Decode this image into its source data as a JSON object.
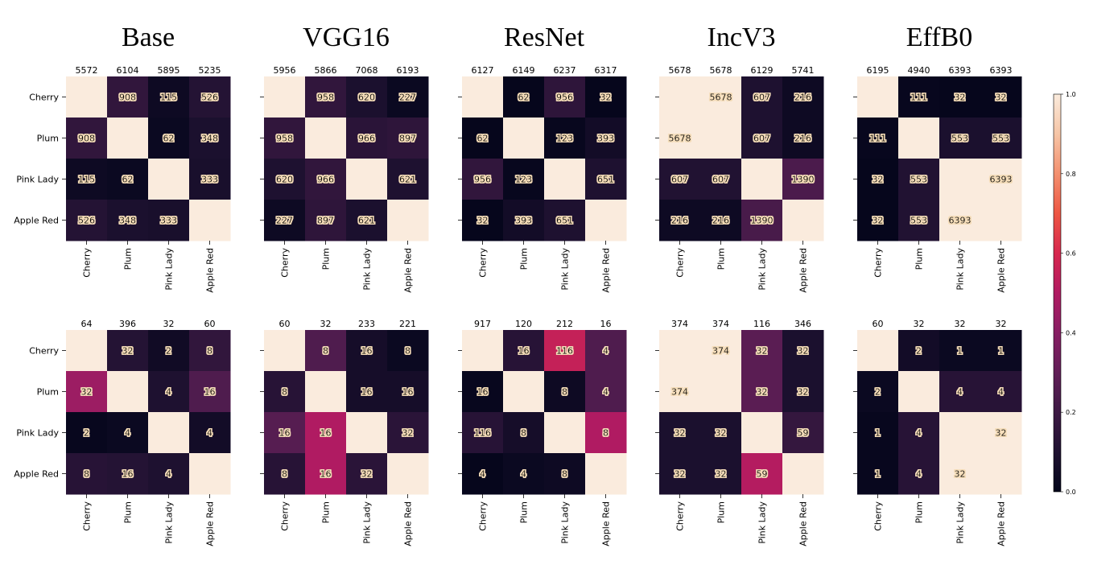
{
  "chart_data": {
    "type": "heatmap",
    "categories": [
      "Cherry",
      "Plum",
      "Pink Lady",
      "Apple Red"
    ],
    "columns": [
      {
        "title": "Base",
        "rows": [
          {
            "top_counts": [
              "5572",
              "6104",
              "5895",
              "5235"
            ],
            "cells": [
              [
                "",
                "908",
                "115",
                "526"
              ],
              [
                "908",
                "",
                "62",
                "348"
              ],
              [
                "115",
                "62",
                "",
                "333"
              ],
              [
                "526",
                "348",
                "333",
                ""
              ]
            ],
            "intensity": [
              [
                1.0,
                0.16,
                0.04,
                0.12
              ],
              [
                0.16,
                1.0,
                0.03,
                0.09
              ],
              [
                0.04,
                0.03,
                1.0,
                0.08
              ],
              [
                0.12,
                0.09,
                0.08,
                1.0
              ]
            ]
          },
          {
            "top_counts": [
              "64",
              "396",
              "32",
              "60"
            ],
            "cells": [
              [
                "",
                "32",
                "2",
                "8"
              ],
              [
                "32",
                "",
                "4",
                "16"
              ],
              [
                "2",
                "4",
                "",
                "4"
              ],
              [
                "8",
                "16",
                "4",
                ""
              ]
            ],
            "intensity": [
              [
                1.0,
                0.12,
                0.05,
                0.16
              ],
              [
                0.45,
                1.0,
                0.1,
                0.25
              ],
              [
                0.02,
                0.03,
                1.0,
                0.06
              ],
              [
                0.13,
                0.12,
                0.1,
                1.0
              ]
            ]
          }
        ]
      },
      {
        "title": "VGG16",
        "rows": [
          {
            "top_counts": [
              "5956",
              "5866",
              "7068",
              "6193"
            ],
            "cells": [
              [
                "",
                "958",
                "620",
                "227"
              ],
              [
                "958",
                "",
                "966",
                "897"
              ],
              [
                "620",
                "966",
                "",
                "621"
              ],
              [
                "227",
                "897",
                "621",
                ""
              ]
            ],
            "intensity": [
              [
                1.0,
                0.16,
                0.09,
                0.03
              ],
              [
                0.16,
                1.0,
                0.14,
                0.15
              ],
              [
                0.1,
                0.16,
                1.0,
                0.1
              ],
              [
                0.04,
                0.15,
                0.09,
                1.0
              ]
            ]
          },
          {
            "top_counts": [
              "60",
              "32",
              "233",
              "221"
            ],
            "cells": [
              [
                "",
                "8",
                "16",
                "8"
              ],
              [
                "8",
                "",
                "16",
                "16"
              ],
              [
                "16",
                "16",
                "",
                "32"
              ],
              [
                "8",
                "16",
                "32",
                ""
              ]
            ],
            "intensity": [
              [
                1.0,
                0.25,
                0.07,
                0.03
              ],
              [
                0.13,
                1.0,
                0.07,
                0.07
              ],
              [
                0.27,
                0.5,
                1.0,
                0.14
              ],
              [
                0.13,
                0.5,
                0.14,
                1.0
              ]
            ]
          }
        ]
      },
      {
        "title": "ResNet",
        "rows": [
          {
            "top_counts": [
              "6127",
              "6149",
              "6237",
              "6317"
            ],
            "cells": [
              [
                "",
                "62",
                "956",
                "32"
              ],
              [
                "62",
                "",
                "123",
                "393"
              ],
              [
                "956",
                "123",
                "",
                "651"
              ],
              [
                "32",
                "393",
                "651",
                ""
              ]
            ],
            "intensity": [
              [
                1.0,
                0.01,
                0.15,
                0.01
              ],
              [
                0.01,
                1.0,
                0.02,
                0.06
              ],
              [
                0.16,
                0.02,
                1.0,
                0.1
              ],
              [
                0.01,
                0.06,
                0.1,
                1.0
              ]
            ]
          },
          {
            "top_counts": [
              "917",
              "120",
              "212",
              "16"
            ],
            "cells": [
              [
                "",
                "16",
                "116",
                "4"
              ],
              [
                "16",
                "",
                "8",
                "4"
              ],
              [
                "116",
                "8",
                "",
                "8"
              ],
              [
                "4",
                "4",
                "8",
                ""
              ]
            ],
            "intensity": [
              [
                1.0,
                0.13,
                0.55,
                0.25
              ],
              [
                0.02,
                1.0,
                0.04,
                0.25
              ],
              [
                0.13,
                0.07,
                1.0,
                0.5
              ],
              [
                0.01,
                0.03,
                0.04,
                1.0
              ]
            ]
          }
        ]
      },
      {
        "title": "IncV3",
        "rows": [
          {
            "top_counts": [
              "5678",
              "5678",
              "6129",
              "5741"
            ],
            "cells": [
              [
                "",
                "5678",
                "607",
                "216"
              ],
              [
                "5678",
                "",
                "607",
                "216"
              ],
              [
                "607",
                "607",
                "",
                "1390"
              ],
              [
                "216",
                "216",
                "1390",
                ""
              ]
            ],
            "intensity": [
              [
                1.0,
                1.0,
                0.1,
                0.04
              ],
              [
                1.0,
                1.0,
                0.1,
                0.04
              ],
              [
                0.11,
                0.11,
                1.0,
                0.24
              ],
              [
                0.04,
                0.04,
                0.23,
                1.0
              ]
            ]
          },
          {
            "top_counts": [
              "374",
              "374",
              "116",
              "346"
            ],
            "cells": [
              [
                "",
                "374",
                "32",
                "32"
              ],
              [
                "374",
                "",
                "32",
                "32"
              ],
              [
                "32",
                "32",
                "",
                "59"
              ],
              [
                "32",
                "32",
                "59",
                ""
              ]
            ],
            "intensity": [
              [
                1.0,
                1.0,
                0.28,
                0.09
              ],
              [
                1.0,
                1.0,
                0.28,
                0.09
              ],
              [
                0.09,
                0.09,
                1.0,
                0.17
              ],
              [
                0.09,
                0.09,
                0.51,
                1.0
              ]
            ]
          }
        ]
      },
      {
        "title": "EffB0",
        "rows": [
          {
            "top_counts": [
              "6195",
              "4940",
              "6393",
              "6393"
            ],
            "cells": [
              [
                "",
                "111",
                "32",
                "32"
              ],
              [
                "111",
                "",
                "553",
                "553"
              ],
              [
                "32",
                "553",
                "",
                "6393"
              ],
              [
                "32",
                "553",
                "6393",
                ""
              ]
            ],
            "intensity": [
              [
                1.0,
                0.02,
                0.01,
                0.01
              ],
              [
                0.02,
                1.0,
                0.09,
                0.09
              ],
              [
                0.01,
                0.11,
                1.0,
                1.0
              ],
              [
                0.01,
                0.11,
                1.0,
                1.0
              ]
            ]
          },
          {
            "top_counts": [
              "60",
              "32",
              "32",
              "32"
            ],
            "cells": [
              [
                "",
                "2",
                "1",
                "1"
              ],
              [
                "2",
                "",
                "4",
                "4"
              ],
              [
                "1",
                "4",
                "",
                "32"
              ],
              [
                "1",
                "4",
                "32",
                ""
              ]
            ],
            "intensity": [
              [
                1.0,
                0.06,
                0.03,
                0.03
              ],
              [
                0.03,
                1.0,
                0.13,
                0.13
              ],
              [
                0.02,
                0.13,
                1.0,
                1.0
              ],
              [
                0.02,
                0.13,
                1.0,
                1.0
              ]
            ]
          }
        ]
      }
    ],
    "colorbar": {
      "cmap": "rocket",
      "range": [
        0.0,
        1.0
      ],
      "ticks": [
        "0.0",
        "0.2",
        "0.4",
        "0.6",
        "0.8",
        "1.0"
      ]
    }
  }
}
